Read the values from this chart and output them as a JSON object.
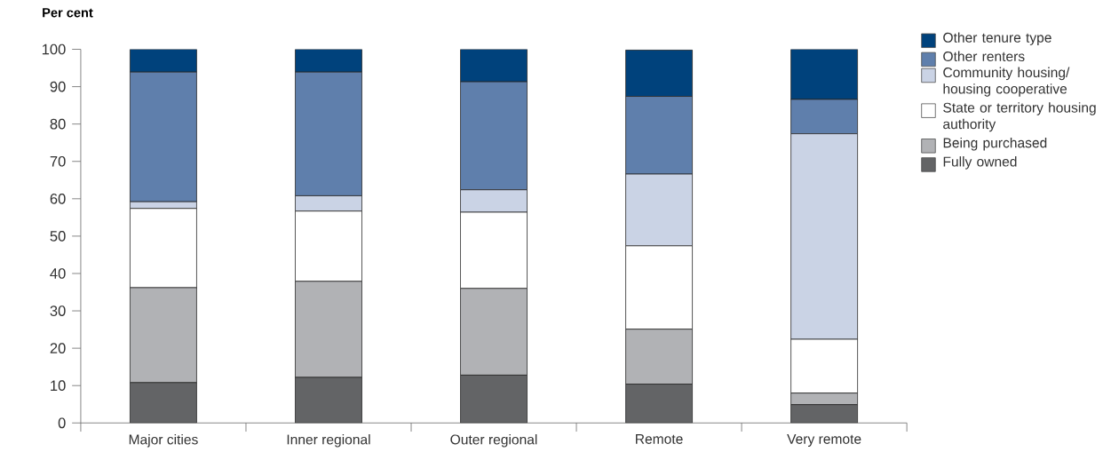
{
  "chart_data": {
    "type": "bar",
    "stacked": true,
    "ylabel": "Per cent",
    "legend": "top right",
    "categories": [
      "Major cities",
      "Inner regional",
      "Outer regional",
      "Remote",
      "Very remote"
    ],
    "ylim": [
      0,
      100
    ],
    "yticks": [
      0,
      10,
      20,
      30,
      40,
      50,
      60,
      70,
      80,
      90,
      100
    ],
    "series": [
      {
        "name": "Fully owned",
        "color": "#636466",
        "values": [
          10.8,
          12.2,
          12.8,
          10.4,
          4.9
        ]
      },
      {
        "name": "Being purchased",
        "color": "#b1b2b5",
        "values": [
          25.4,
          25.7,
          23.2,
          14.7,
          3.1
        ]
      },
      {
        "name": "State or territory housing authority",
        "color": "#ffffff",
        "values": [
          21.2,
          18.8,
          20.4,
          22.3,
          14.4
        ]
      },
      {
        "name": "Community housing/ housing cooperative",
        "color": "#cad3e5",
        "values": [
          1.8,
          4.1,
          6.0,
          19.2,
          55.0
        ]
      },
      {
        "name": "Other renters",
        "color": "#5f7fac",
        "values": [
          34.7,
          33.1,
          28.9,
          20.8,
          9.2
        ]
      },
      {
        "name": "Other tenure type",
        "color": "#00427c",
        "values": [
          6.1,
          6.1,
          8.7,
          12.4,
          13.4
        ]
      }
    ]
  }
}
